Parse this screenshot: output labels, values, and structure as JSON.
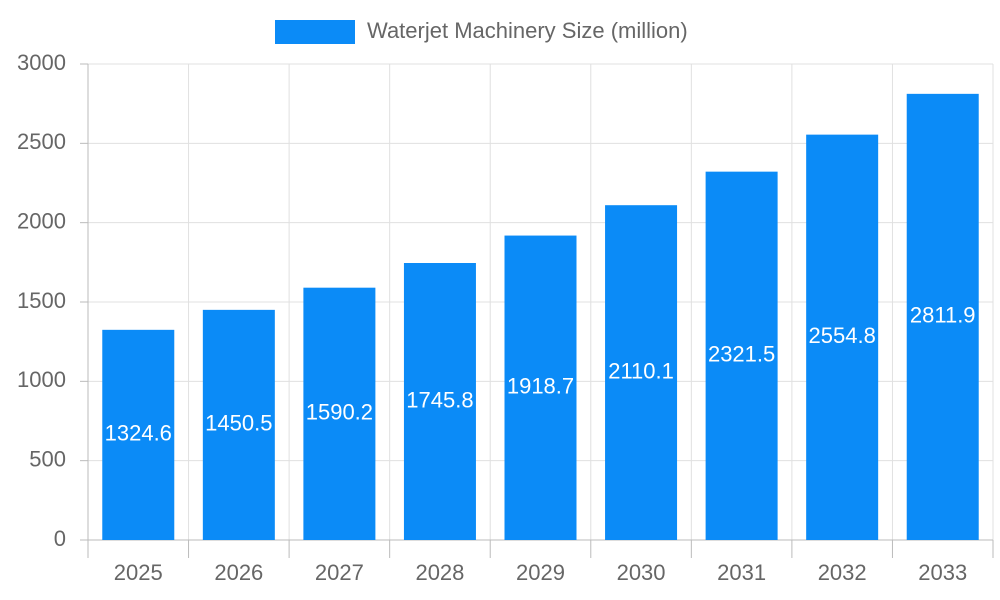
{
  "chart_data": {
    "type": "bar",
    "categories": [
      "2025",
      "2026",
      "2027",
      "2028",
      "2029",
      "2030",
      "2031",
      "2032",
      "2033"
    ],
    "series": [
      {
        "name": "Waterjet Machinery Size (million)",
        "color": "#0b8bf7",
        "values": [
          1324.6,
          1450.5,
          1590.2,
          1745.8,
          1918.7,
          2110.1,
          2321.5,
          2554.8,
          2811.9
        ]
      }
    ],
    "ylim": [
      0,
      3000
    ],
    "yticks": [
      0,
      500,
      1000,
      1500,
      2000,
      2500,
      3000
    ],
    "grid": true
  }
}
